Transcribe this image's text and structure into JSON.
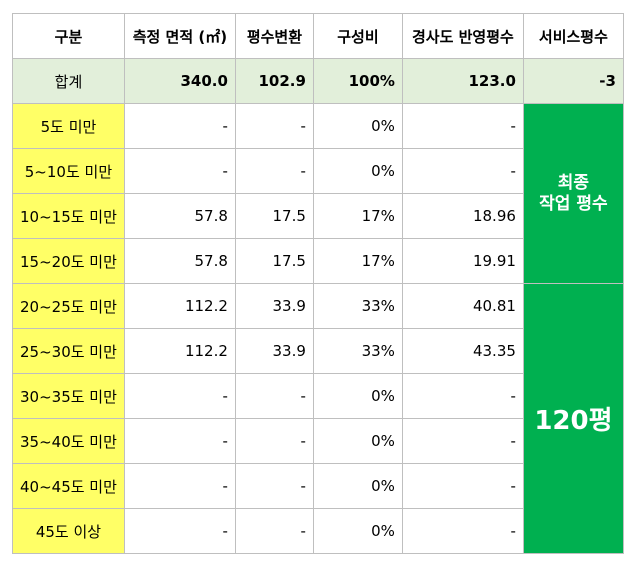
{
  "headers": [
    "구분",
    "측정 면적 (㎡)",
    "평수변환",
    "구성비",
    "경사도 반영평수",
    "서비스평수"
  ],
  "total": {
    "label": "합계",
    "area": "340.0",
    "pyeong": "102.9",
    "ratio": "100%",
    "slope_pyeong": "123.0",
    "service": "-3"
  },
  "rows": [
    {
      "cat": "5도 미만",
      "area": "-",
      "pyeong": "-",
      "ratio": "0%",
      "slope_pyeong": "-"
    },
    {
      "cat": "5~10도 미만",
      "area": "-",
      "pyeong": "-",
      "ratio": "0%",
      "slope_pyeong": "-"
    },
    {
      "cat": "10~15도 미만",
      "area": "57.8",
      "pyeong": "17.5",
      "ratio": "17%",
      "slope_pyeong": "18.96"
    },
    {
      "cat": "15~20도 미만",
      "area": "57.8",
      "pyeong": "17.5",
      "ratio": "17%",
      "slope_pyeong": "19.91"
    },
    {
      "cat": "20~25도 미만",
      "area": "112.2",
      "pyeong": "33.9",
      "ratio": "33%",
      "slope_pyeong": "40.81"
    },
    {
      "cat": "25~30도 미만",
      "area": "112.2",
      "pyeong": "33.9",
      "ratio": "33%",
      "slope_pyeong": "43.35"
    },
    {
      "cat": "30~35도 미만",
      "area": "-",
      "pyeong": "-",
      "ratio": "0%",
      "slope_pyeong": "-"
    },
    {
      "cat": "35~40도 미만",
      "area": "-",
      "pyeong": "-",
      "ratio": "0%",
      "slope_pyeong": "-"
    },
    {
      "cat": "40~45도 미만",
      "area": "-",
      "pyeong": "-",
      "ratio": "0%",
      "slope_pyeong": "-"
    },
    {
      "cat": "45도 이상",
      "area": "-",
      "pyeong": "-",
      "ratio": "0%",
      "slope_pyeong": "-"
    }
  ],
  "final_block": {
    "line1": "최종",
    "line2": "작업 평수"
  },
  "result_block": {
    "value": "120평"
  },
  "colors": {
    "header_total_bg": "#e2efda",
    "category_bg": "#ffff66",
    "highlight_bg": "#00b050",
    "negative_text": "#ff0000",
    "grid": "#bfbfbf"
  }
}
